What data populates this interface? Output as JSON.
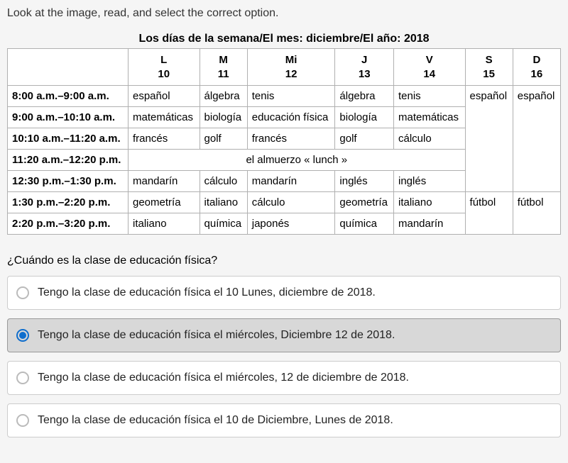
{
  "instruction": "Look at the image, read, and select the correct option.",
  "table_title": "Los días de la semana/El mes: diciembre/El año: 2018",
  "header": {
    "time_col": "",
    "days": [
      {
        "abbrev": "L",
        "num": "10"
      },
      {
        "abbrev": "M",
        "num": "11"
      },
      {
        "abbrev": "Mi",
        "num": "12"
      },
      {
        "abbrev": "J",
        "num": "13"
      },
      {
        "abbrev": "V",
        "num": "14"
      },
      {
        "abbrev": "S",
        "num": "15"
      },
      {
        "abbrev": "D",
        "num": "16"
      }
    ]
  },
  "rows": {
    "r0": {
      "time": "8:00 a.m.–9:00 a.m.",
      "c0": "español",
      "c1": "álgebra",
      "c2": "tenis",
      "c3": "álgebra",
      "c4": "tenis",
      "c5": "español",
      "c6": "español"
    },
    "r1": {
      "time": "9:00 a.m.–10:10 a.m.",
      "c0": "matemáticas",
      "c1": "biología",
      "c2": "educación física",
      "c3": "biología",
      "c4": "matemáticas"
    },
    "r2": {
      "time": "10:10 a.m.–11:20 a.m.",
      "c0": "francés",
      "c1": "golf",
      "c2": "francés",
      "c3": "golf",
      "c4": "cálculo"
    },
    "r3": {
      "time": "11:20 a.m.–12:20 p.m.",
      "lunch": "el almuerzo « lunch »"
    },
    "r4": {
      "time": "12:30 p.m.–1:30 p.m.",
      "c0": "mandarín",
      "c1": "cálculo",
      "c2": "mandarín",
      "c3": "inglés",
      "c4": "inglés"
    },
    "r5": {
      "time": "1:30 p.m.–2:20 p.m.",
      "c0": "geometría",
      "c1": "italiano",
      "c2": "cálculo",
      "c3": "geometría",
      "c4": "italiano",
      "c5": "fútbol",
      "c6": "fútbol"
    },
    "r6": {
      "time": "2:20 p.m.–3:20 p.m.",
      "c0": "italiano",
      "c1": "química",
      "c2": "japonés",
      "c3": "química",
      "c4": "mandarín"
    }
  },
  "question": "¿Cuándo es la clase de educación física?",
  "options": {
    "o0": "Tengo la clase de educación física el 10 Lunes, diciembre de 2018.",
    "o1": "Tengo la clase de educación física el miércoles, Diciembre 12 de 2018.",
    "o2": "Tengo la clase de educación física el miércoles, 12 de diciembre de 2018.",
    "o3": "Tengo la clase de educación física el 10 de Diciembre, Lunes de 2018."
  }
}
